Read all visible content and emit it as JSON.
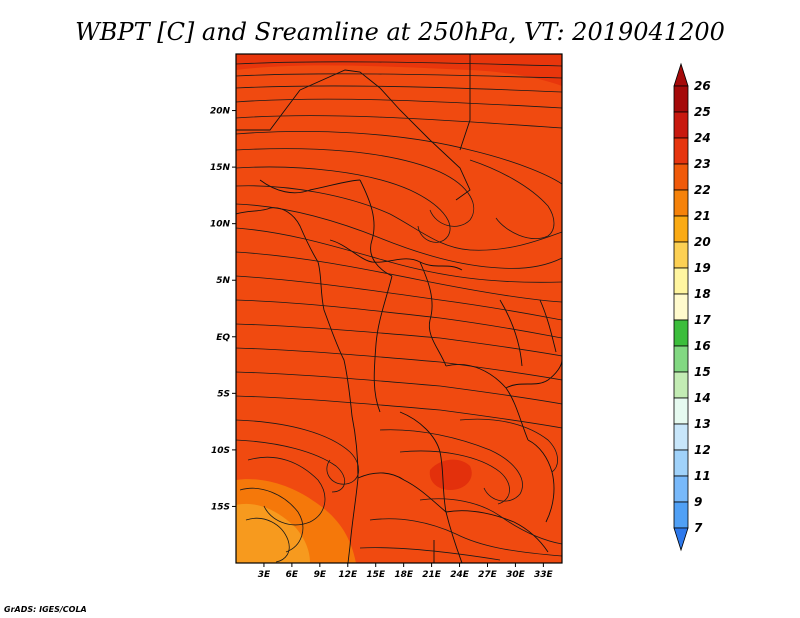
{
  "title": "WBPT [C] and Sreamline at 250hPa, VT: 2019041200",
  "credit": "GrADS: IGES/COLA",
  "map": {
    "lon_range": [
      0,
      35
    ],
    "lat_range": [
      -20,
      25
    ],
    "lat_ticks": [
      {
        "lat": 20,
        "label": "20N"
      },
      {
        "lat": 15,
        "label": "15N"
      },
      {
        "lat": 10,
        "label": "10N"
      },
      {
        "lat": 5,
        "label": "5N"
      },
      {
        "lat": 0,
        "label": "EQ"
      },
      {
        "lat": -5,
        "label": "5S"
      },
      {
        "lat": -10,
        "label": "10S"
      },
      {
        "lat": -15,
        "label": "15S"
      }
    ],
    "lon_ticks": [
      {
        "lon": 3,
        "label": "3E"
      },
      {
        "lon": 6,
        "label": "6E"
      },
      {
        "lon": 9,
        "label": "9E"
      },
      {
        "lon": 12,
        "label": "12E"
      },
      {
        "lon": 15,
        "label": "15E"
      },
      {
        "lon": 18,
        "label": "18E"
      },
      {
        "lon": 21,
        "label": "21E"
      },
      {
        "lon": 24,
        "label": "24E"
      },
      {
        "lon": 27,
        "label": "27E"
      },
      {
        "lon": 30,
        "label": "30E"
      },
      {
        "lon": 33,
        "label": "33E"
      }
    ],
    "background_color": "#f04a10"
  },
  "colorbar": {
    "top_label": "26",
    "levels": [
      {
        "label": "25",
        "color": "#a50a0a"
      },
      {
        "label": "24",
        "color": "#c8190f"
      },
      {
        "label": "23",
        "color": "#e6350f"
      },
      {
        "label": "22",
        "color": "#f05a0a"
      },
      {
        "label": "21",
        "color": "#f5820a"
      },
      {
        "label": "20",
        "color": "#faaa14"
      },
      {
        "label": "19",
        "color": "#fcd054"
      },
      {
        "label": "18",
        "color": "#fff5a0"
      },
      {
        "label": "17",
        "color": "#fffacd"
      },
      {
        "label": "16",
        "color": "#3cbe3c"
      },
      {
        "label": "15",
        "color": "#82d882"
      },
      {
        "label": "14",
        "color": "#c3ecb4"
      },
      {
        "label": "13",
        "color": "#e6faf0"
      },
      {
        "label": "12",
        "color": "#c8e6fa"
      },
      {
        "label": "11",
        "color": "#a0d2fa"
      },
      {
        "label": "9",
        "color": "#78b9fa"
      },
      {
        "label": "7",
        "color": "#50a0f5"
      }
    ],
    "top_color": "#a50a0a",
    "bottom_color": "#2d78eb"
  }
}
